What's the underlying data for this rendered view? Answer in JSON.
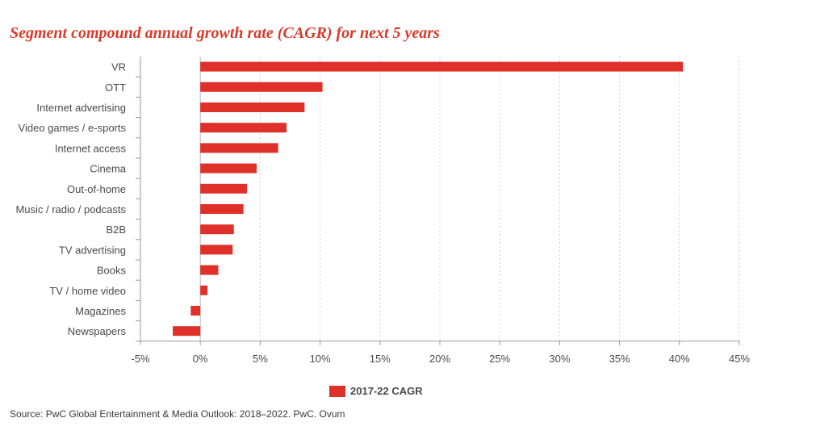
{
  "chart_title": "Segment compound annual growth rate (CAGR) for next 5 years",
  "source": "Source: PwC Global Entertainment & Media Outlook: 2018–2022. PwC. Ovum",
  "legend": {
    "label": "2017-22 CAGR",
    "color": "#e0302a"
  },
  "chart_data": {
    "type": "bar",
    "orientation": "horizontal",
    "title": "Segment compound annual growth rate (CAGR) for next 5 years",
    "categories": [
      "VR",
      "OTT",
      "Internet advertising",
      "Video games / e-sports",
      "Internet access",
      "Cinema",
      "Out-of-home",
      "Music / radio / podcasts",
      "B2B",
      "TV advertising",
      "Books",
      "TV / home video",
      "Magazines",
      "Newspapers"
    ],
    "series": [
      {
        "name": "2017-22 CAGR",
        "values": [
          40.3,
          10.2,
          8.7,
          7.2,
          6.5,
          4.7,
          3.9,
          3.6,
          2.8,
          2.7,
          1.5,
          0.6,
          -0.8,
          -2.3
        ],
        "color": "#e0302a"
      }
    ],
    "xlim": [
      -5,
      45
    ],
    "xticks": [
      -5,
      0,
      5,
      10,
      15,
      20,
      25,
      30,
      35,
      40,
      45
    ],
    "tick_suffix": "%",
    "grid": "vertical dotted",
    "legend_position": "bottom-center"
  }
}
